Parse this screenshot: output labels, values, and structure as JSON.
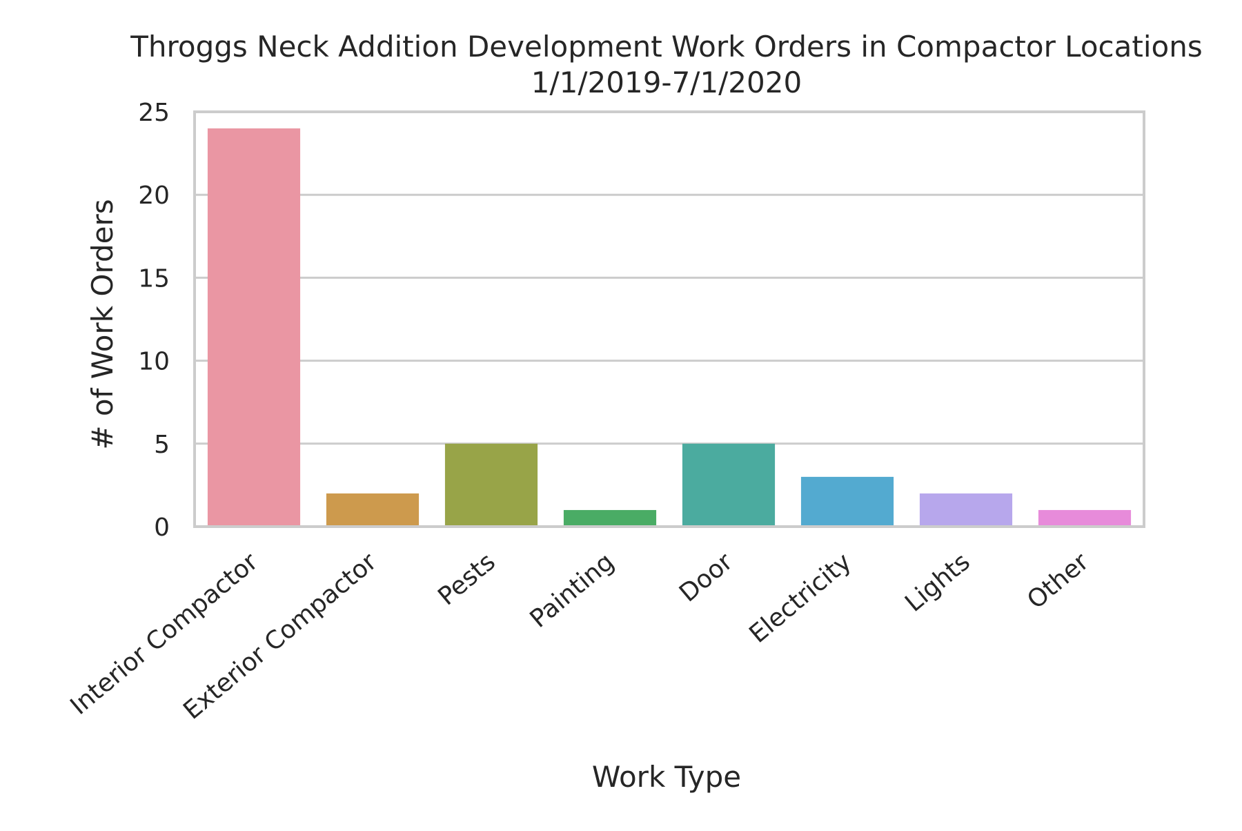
{
  "chart_data": {
    "type": "bar",
    "title": "Throggs Neck Addition Development Work Orders in Compactor Locations",
    "subtitle": "1/1/2019-7/1/2020",
    "xlabel": "Work Type",
    "ylabel": "# of Work Orders",
    "categories": [
      "Interior Compactor",
      "Exterior Compactor",
      "Pests",
      "Painting",
      "Door",
      "Electricity",
      "Lights",
      "Other"
    ],
    "values": [
      24,
      2,
      5,
      1,
      5,
      3,
      2,
      1
    ],
    "colors": [
      "#ea96a3",
      "#cd9a4d",
      "#98a448",
      "#4aac65",
      "#4bab9f",
      "#53aad0",
      "#b7a7ec",
      "#e78bda"
    ],
    "ylim": [
      0,
      25
    ],
    "yticks": [
      0,
      5,
      10,
      15,
      20,
      25
    ],
    "grid": "horizontal",
    "frame_color": "#cccccc",
    "grid_color": "#cccccc"
  }
}
